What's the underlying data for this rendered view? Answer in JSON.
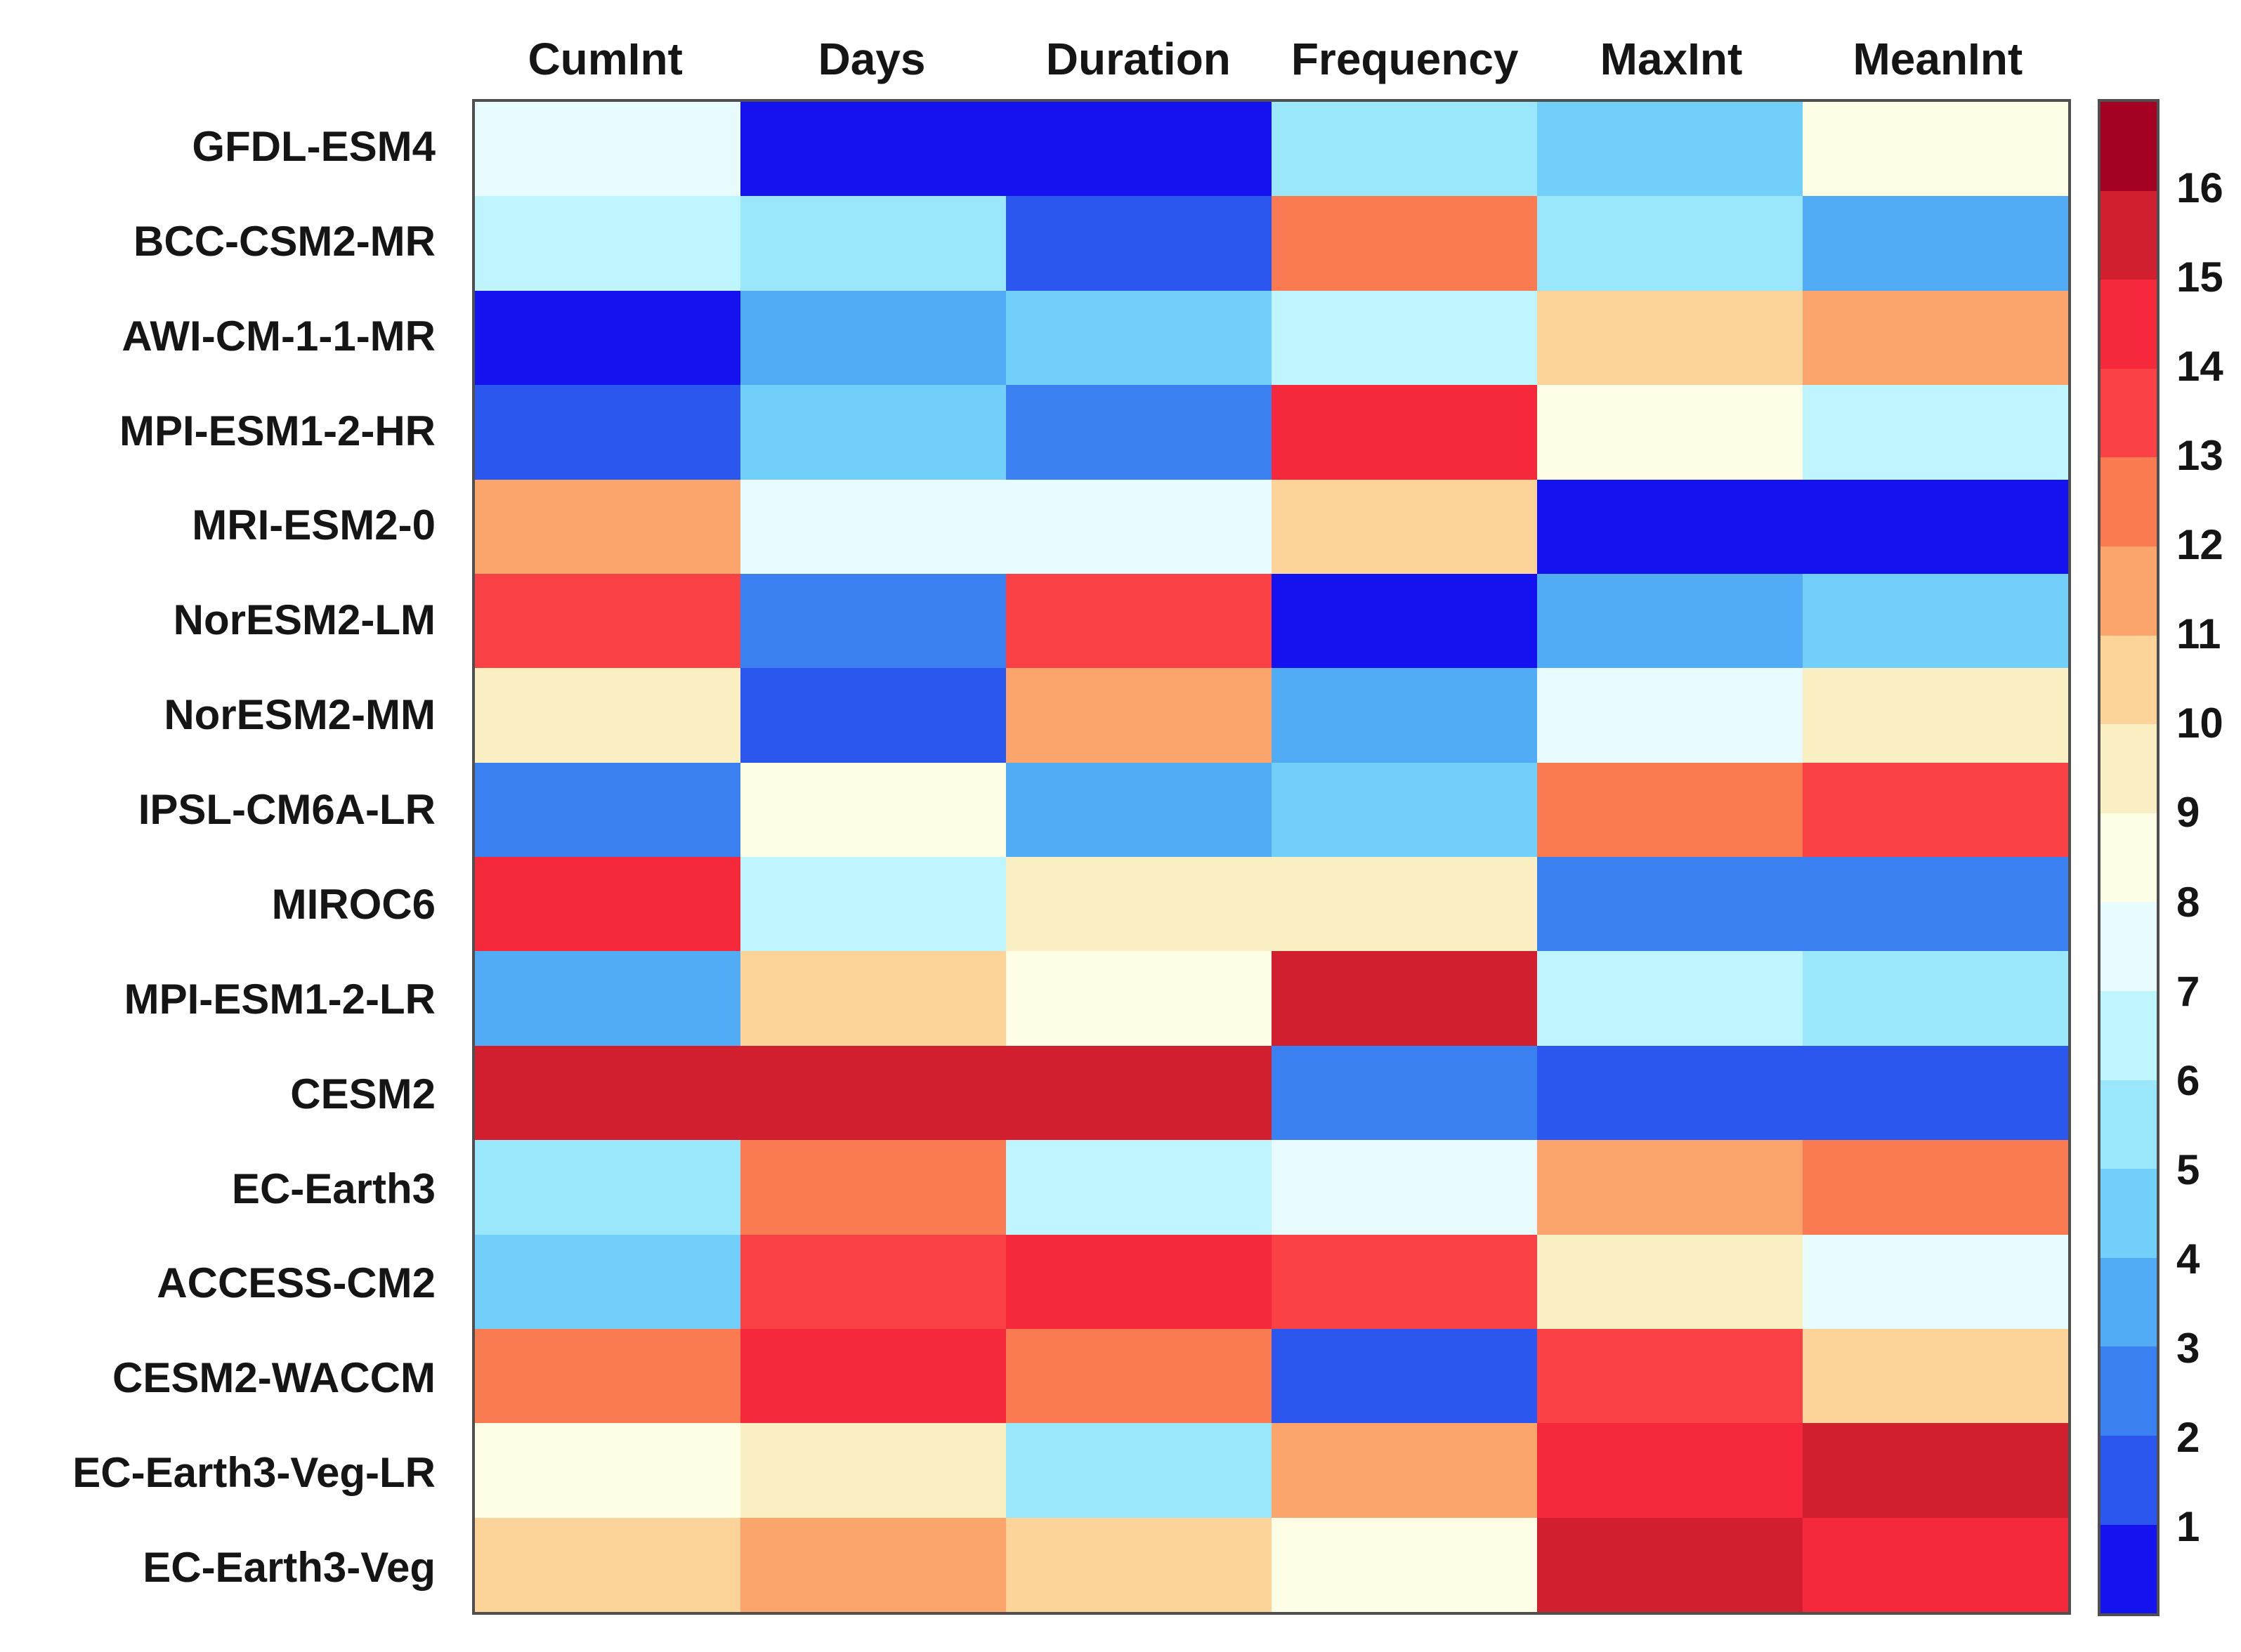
{
  "chart_data": {
    "type": "heatmap",
    "title": "",
    "columns": [
      "CumInt",
      "Days",
      "Duration",
      "Frequency",
      "MaxInt",
      "MeanInt"
    ],
    "rows": [
      "GFDL-ESM4",
      "BCC-CSM2-MR",
      "AWI-CM-1-1-MR",
      "MPI-ESM1-2-HR",
      "MRI-ESM2-0",
      "NorESM2-LM",
      "NorESM2-MM",
      "IPSL-CM6A-LR",
      "MIROC6",
      "MPI-ESM1-2-LR",
      "CESM2",
      "EC-Earth3",
      "ACCESS-CM2",
      "CESM2-WACCM",
      "EC-Earth3-Veg-LR",
      "EC-Earth3-Veg"
    ],
    "values": [
      [
        8,
        1,
        1,
        6,
        5,
        9
      ],
      [
        7,
        6,
        2,
        13,
        6,
        4
      ],
      [
        1,
        4,
        5,
        7,
        11,
        12
      ],
      [
        2,
        5,
        3,
        15,
        9,
        7
      ],
      [
        12,
        8,
        8,
        11,
        1,
        1
      ],
      [
        14,
        3,
        14,
        1,
        4,
        5
      ],
      [
        10,
        2,
        12,
        4,
        8,
        10
      ],
      [
        3,
        9,
        4,
        5,
        13,
        14
      ],
      [
        15,
        7,
        10,
        10,
        3,
        3
      ],
      [
        4,
        11,
        9,
        16,
        7,
        6
      ],
      [
        16,
        16,
        16,
        3,
        2,
        2
      ],
      [
        6,
        13,
        7,
        8,
        12,
        13
      ],
      [
        5,
        14,
        15,
        14,
        10,
        8
      ],
      [
        13,
        15,
        13,
        2,
        14,
        11
      ],
      [
        9,
        10,
        6,
        12,
        15,
        16
      ],
      [
        11,
        12,
        11,
        9,
        16,
        15
      ]
    ],
    "value_range": [
      1,
      16
    ],
    "colorbar_ticks": [
      1,
      2,
      3,
      4,
      5,
      6,
      7,
      8,
      9,
      10,
      11,
      12,
      13,
      14,
      15,
      16
    ],
    "colorbar_position": "right",
    "palette_low_to_high": [
      "#1412EF",
      "#2B57EE",
      "#3A80F1",
      "#51ACF5",
      "#72CFFA",
      "#9AE7FC",
      "#BFF5FE",
      "#E8FBFE",
      "#FEFDE6",
      "#FAEFC2",
      "#FCD398",
      "#FBA46C",
      "#FA7B51",
      "#FA4145",
      "#F5283C",
      "#D11F2F",
      "#A50122"
    ],
    "grid": "off",
    "xlabel": "",
    "ylabel": ""
  },
  "colors": {
    "background": "#ffffff",
    "axis_border": "#4f4f4f",
    "label_text": "#151515"
  }
}
